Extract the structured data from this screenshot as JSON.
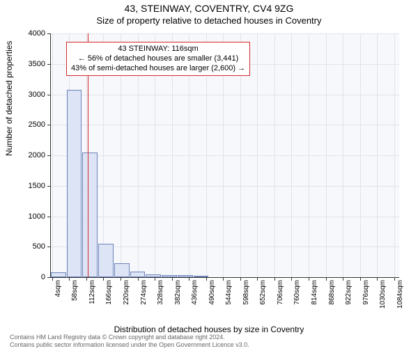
{
  "title": "43, STEINWAY, COVENTRY, CV4 9ZG",
  "subtitle": "Size of property relative to detached houses in Coventry",
  "ylabel": "Number of detached properties",
  "xlabel": "Distribution of detached houses by size in Coventry",
  "footer1": "Contains HM Land Registry data © Crown copyright and database right 2024.",
  "footer2": "Contains public sector information licensed under the Open Government Licence v3.0.",
  "chart": {
    "type": "histogram",
    "background": "#f7f8fb",
    "grid_color": "#e0e3ea",
    "axis_color": "#333333",
    "bar_fill": "#dce4f5",
    "bar_stroke": "#6b82b9",
    "bar_stroke_width": 1,
    "ylim": [
      0,
      4000
    ],
    "ytick_step": 500,
    "xlim": [
      0,
      1100
    ],
    "xtick_start": 4,
    "xtick_step": 54,
    "xtick_unit": "sqm",
    "bars": [
      {
        "x0": 0,
        "x1": 50,
        "count": 80
      },
      {
        "x0": 50,
        "x1": 100,
        "count": 3080
      },
      {
        "x0": 100,
        "x1": 150,
        "count": 2050
      },
      {
        "x0": 150,
        "x1": 200,
        "count": 550
      },
      {
        "x0": 200,
        "x1": 250,
        "count": 230
      },
      {
        "x0": 250,
        "x1": 300,
        "count": 90
      },
      {
        "x0": 300,
        "x1": 350,
        "count": 50
      },
      {
        "x0": 350,
        "x1": 400,
        "count": 40
      },
      {
        "x0": 400,
        "x1": 450,
        "count": 30
      },
      {
        "x0": 450,
        "x1": 500,
        "count": 20
      }
    ],
    "marker": {
      "x": 116,
      "color": "#d62728"
    },
    "callout": {
      "line1": "43 STEINWAY: 116sqm",
      "line2": "← 56% of detached houses are smaller (3,441)",
      "line3": "43% of semi-detached houses are larger (2,600) →",
      "border_color": "#d62728",
      "bg": "#ffffff",
      "fontsize": 11
    }
  }
}
